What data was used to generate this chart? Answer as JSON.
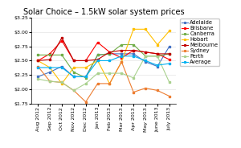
{
  "title": "Solar Choice – 1.5kW solar system prices",
  "months": [
    "Aug 2012",
    "Sep 2012",
    "Oct 2012",
    "Nov 2012",
    "Dec 2012",
    "Jan 2013",
    "Feb 2013",
    "Mar 2013",
    "Apr 2013",
    "May 2013",
    "June 2013",
    "July 2013"
  ],
  "series": {
    "Adelaide": {
      "color": "#4472C4",
      "marker": "s",
      "values": [
        2.22,
        2.3,
        2.4,
        2.22,
        2.22,
        2.6,
        2.62,
        2.62,
        2.62,
        2.48,
        2.4,
        2.75
      ]
    },
    "Brisbane": {
      "color": "#FF0000",
      "marker": "s",
      "values": [
        2.5,
        2.62,
        2.85,
        2.5,
        2.5,
        2.82,
        2.65,
        2.55,
        2.68,
        2.65,
        2.62,
        2.52
      ]
    },
    "Canberra": {
      "color": "#70AD47",
      "marker": "s",
      "values": [
        2.6,
        2.6,
        2.6,
        2.3,
        2.2,
        2.6,
        2.62,
        2.78,
        2.78,
        2.58,
        2.58,
        2.62
      ]
    },
    "Hobart": {
      "color": "#FFC000",
      "marker": "s",
      "values": [
        2.5,
        2.38,
        2.1,
        2.38,
        2.38,
        2.5,
        2.1,
        2.48,
        3.05,
        3.05,
        2.78,
        3.02
      ]
    },
    "Melbourne": {
      "color": "#C00000",
      "marker": "s",
      "values": [
        2.5,
        2.52,
        2.9,
        2.5,
        2.5,
        2.52,
        2.65,
        2.68,
        2.68,
        2.65,
        2.62,
        2.62
      ]
    },
    "Sydney": {
      "color": "#ED7D31",
      "marker": "s",
      "values": [
        2.4,
        2.14,
        2.12,
        1.98,
        1.78,
        2.1,
        2.1,
        2.48,
        1.95,
        2.02,
        1.98,
        1.88
      ]
    },
    "Perth": {
      "color": "#A9D18E",
      "marker": "s",
      "values": [
        2.18,
        2.14,
        2.12,
        1.98,
        2.1,
        2.28,
        2.28,
        2.28,
        2.2,
        2.58,
        2.58,
        2.12
      ]
    },
    "Average": {
      "color": "#00B0F0",
      "marker": "s",
      "values": [
        2.38,
        2.38,
        2.38,
        2.22,
        2.22,
        2.5,
        2.5,
        2.58,
        2.58,
        2.5,
        2.42,
        2.45
      ]
    }
  },
  "ylim": [
    1.75,
    3.25
  ],
  "yticks": [
    1.75,
    2.0,
    2.25,
    2.5,
    2.75,
    3.0,
    3.25
  ],
  "bg_color": "#FFFFFF",
  "title_fontsize": 7,
  "tick_fontsize": 4.5,
  "legend_fontsize": 4.8
}
